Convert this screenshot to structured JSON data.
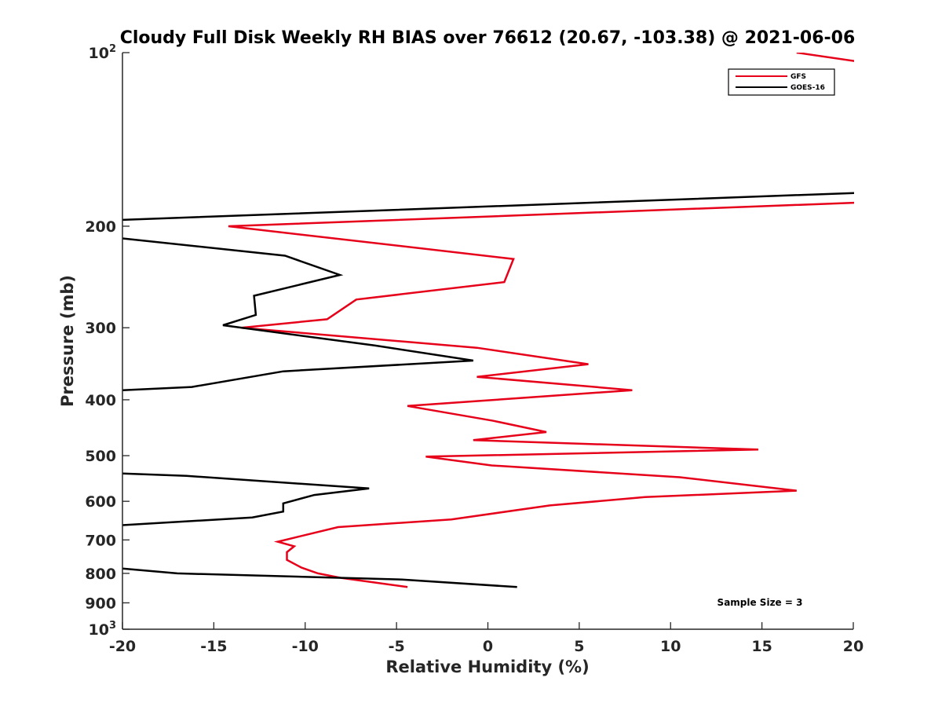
{
  "chart_data": {
    "type": "line",
    "title": "Cloudy Full Disk Weekly RH BIAS over 76612 (20.67, -103.38) @ 2021-06-06",
    "xlabel": "Relative Humidity (%)",
    "ylabel": "Pressure (mb)",
    "xlim": [
      -20,
      20
    ],
    "ylim": [
      100,
      1000
    ],
    "yscale": "log",
    "y_reversed": true,
    "grid": false,
    "legend_position": "top-right",
    "xticks": [
      -20,
      -15,
      -10,
      -5,
      0,
      5,
      10,
      15,
      20
    ],
    "xtick_labels": [
      "-20",
      "-15",
      "-10",
      "-5",
      "0",
      "5",
      "10",
      "15",
      "20"
    ],
    "yticks": [
      100,
      200,
      300,
      400,
      500,
      600,
      700,
      800,
      900,
      1000
    ],
    "ytick_labels": [
      {
        "base": "10",
        "exp": "2"
      },
      {
        "base": "200",
        "exp": ""
      },
      {
        "base": "300",
        "exp": ""
      },
      {
        "base": "400",
        "exp": ""
      },
      {
        "base": "500",
        "exp": ""
      },
      {
        "base": "600",
        "exp": ""
      },
      {
        "base": "700",
        "exp": ""
      },
      {
        "base": "800",
        "exp": ""
      },
      {
        "base": "900",
        "exp": ""
      },
      {
        "base": "10",
        "exp": "3"
      }
    ],
    "annotation": "Sample Size = 3",
    "series": [
      {
        "name": "GFS",
        "color": "#e6001a",
        "points": [
          [
            16.9,
            100
          ],
          [
            20.6,
            104
          ],
          [
            null,
            null
          ],
          [
            20.3,
            182
          ],
          [
            -14.2,
            200
          ],
          [
            1.4,
            228
          ],
          [
            0.9,
            250
          ],
          [
            -7.2,
            268
          ],
          [
            -8.8,
            290
          ],
          [
            -13.5,
            300
          ],
          [
            -0.6,
            325
          ],
          [
            5.5,
            347
          ],
          [
            -0.6,
            365
          ],
          [
            7.9,
            385
          ],
          [
            -4.4,
            410
          ],
          [
            0.3,
            435
          ],
          [
            3.2,
            455
          ],
          [
            -0.8,
            470
          ],
          [
            14.8,
            488
          ],
          [
            -3.4,
            502
          ],
          [
            0.2,
            520
          ],
          [
            10.5,
            545
          ],
          [
            16.9,
            575
          ],
          [
            8.6,
            590
          ],
          [
            3.4,
            610
          ],
          [
            -2.0,
            645
          ],
          [
            -8.2,
            665
          ],
          [
            -11.5,
            705
          ],
          [
            -10.6,
            718
          ],
          [
            -11.0,
            735
          ],
          [
            -11.0,
            758
          ],
          [
            -10.2,
            782
          ],
          [
            -9.3,
            800
          ],
          [
            -8.0,
            815
          ],
          [
            -4.4,
            845
          ]
        ]
      },
      {
        "name": "GOES-16",
        "color": "#000000",
        "points": [
          [
            20.4,
            175
          ],
          [
            -20.0,
            195
          ],
          [
            null,
            null
          ],
          [
            -20.0,
            210
          ],
          [
            -11.1,
            225
          ],
          [
            -8.1,
            243
          ],
          [
            -12.8,
            264
          ],
          [
            -12.7,
            285
          ],
          [
            -14.5,
            297
          ],
          [
            -6.2,
            322
          ],
          [
            -0.8,
            342
          ],
          [
            -11.2,
            357
          ],
          [
            -16.2,
            380
          ],
          [
            -20.0,
            385
          ],
          [
            null,
            null
          ],
          [
            -20.0,
            537
          ],
          [
            -16.5,
            542
          ],
          [
            -6.5,
            570
          ],
          [
            -9.5,
            585
          ],
          [
            -11.2,
            605
          ],
          [
            -11.2,
            625
          ],
          [
            -12.9,
            640
          ],
          [
            -20.0,
            660
          ],
          [
            -20.2,
            665
          ],
          [
            null,
            null
          ],
          [
            -20.0,
            785
          ],
          [
            -17.0,
            800
          ],
          [
            -4.7,
            820
          ],
          [
            1.6,
            845
          ]
        ]
      }
    ]
  }
}
